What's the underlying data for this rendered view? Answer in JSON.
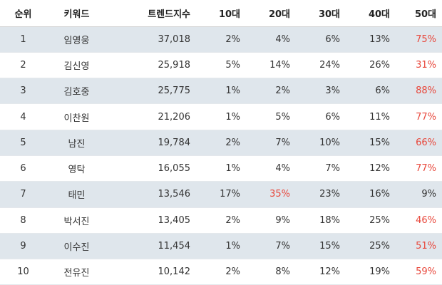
{
  "accent_color": "#e8473b",
  "stripe_color": "#dfe6ec",
  "headers": {
    "rank": "순위",
    "keyword": "키워드",
    "trend": "트렌드지수",
    "a10": "10대",
    "a20": "20대",
    "a30": "30대",
    "a40": "40대",
    "a50": "50대"
  },
  "rows": [
    {
      "rank": "1",
      "keyword": "임영웅",
      "trend": "37,018",
      "a10": "2%",
      "a20": "4%",
      "a30": "6%",
      "a40": "13%",
      "a50": "75%",
      "highlight": "a50"
    },
    {
      "rank": "2",
      "keyword": "김신영",
      "trend": "25,918",
      "a10": "5%",
      "a20": "14%",
      "a30": "24%",
      "a40": "26%",
      "a50": "31%",
      "highlight": "a50"
    },
    {
      "rank": "3",
      "keyword": "김호중",
      "trend": "25,775",
      "a10": "1%",
      "a20": "2%",
      "a30": "3%",
      "a40": "6%",
      "a50": "88%",
      "highlight": "a50"
    },
    {
      "rank": "4",
      "keyword": "이찬원",
      "trend": "21,206",
      "a10": "1%",
      "a20": "5%",
      "a30": "6%",
      "a40": "11%",
      "a50": "77%",
      "highlight": "a50"
    },
    {
      "rank": "5",
      "keyword": "남진",
      "trend": "19,784",
      "a10": "2%",
      "a20": "7%",
      "a30": "10%",
      "a40": "15%",
      "a50": "66%",
      "highlight": "a50"
    },
    {
      "rank": "6",
      "keyword": "영탁",
      "trend": "16,055",
      "a10": "1%",
      "a20": "4%",
      "a30": "7%",
      "a40": "12%",
      "a50": "77%",
      "highlight": "a50"
    },
    {
      "rank": "7",
      "keyword": "태민",
      "trend": "13,546",
      "a10": "17%",
      "a20": "35%",
      "a30": "23%",
      "a40": "16%",
      "a50": "9%",
      "highlight": "a20"
    },
    {
      "rank": "8",
      "keyword": "박서진",
      "trend": "13,405",
      "a10": "2%",
      "a20": "9%",
      "a30": "18%",
      "a40": "25%",
      "a50": "46%",
      "highlight": "a50"
    },
    {
      "rank": "9",
      "keyword": "이수진",
      "trend": "11,454",
      "a10": "1%",
      "a20": "7%",
      "a30": "15%",
      "a40": "25%",
      "a50": "51%",
      "highlight": "a50"
    },
    {
      "rank": "10",
      "keyword": "전유진",
      "trend": "10,142",
      "a10": "2%",
      "a20": "8%",
      "a30": "12%",
      "a40": "19%",
      "a50": "59%",
      "highlight": "a50"
    }
  ]
}
